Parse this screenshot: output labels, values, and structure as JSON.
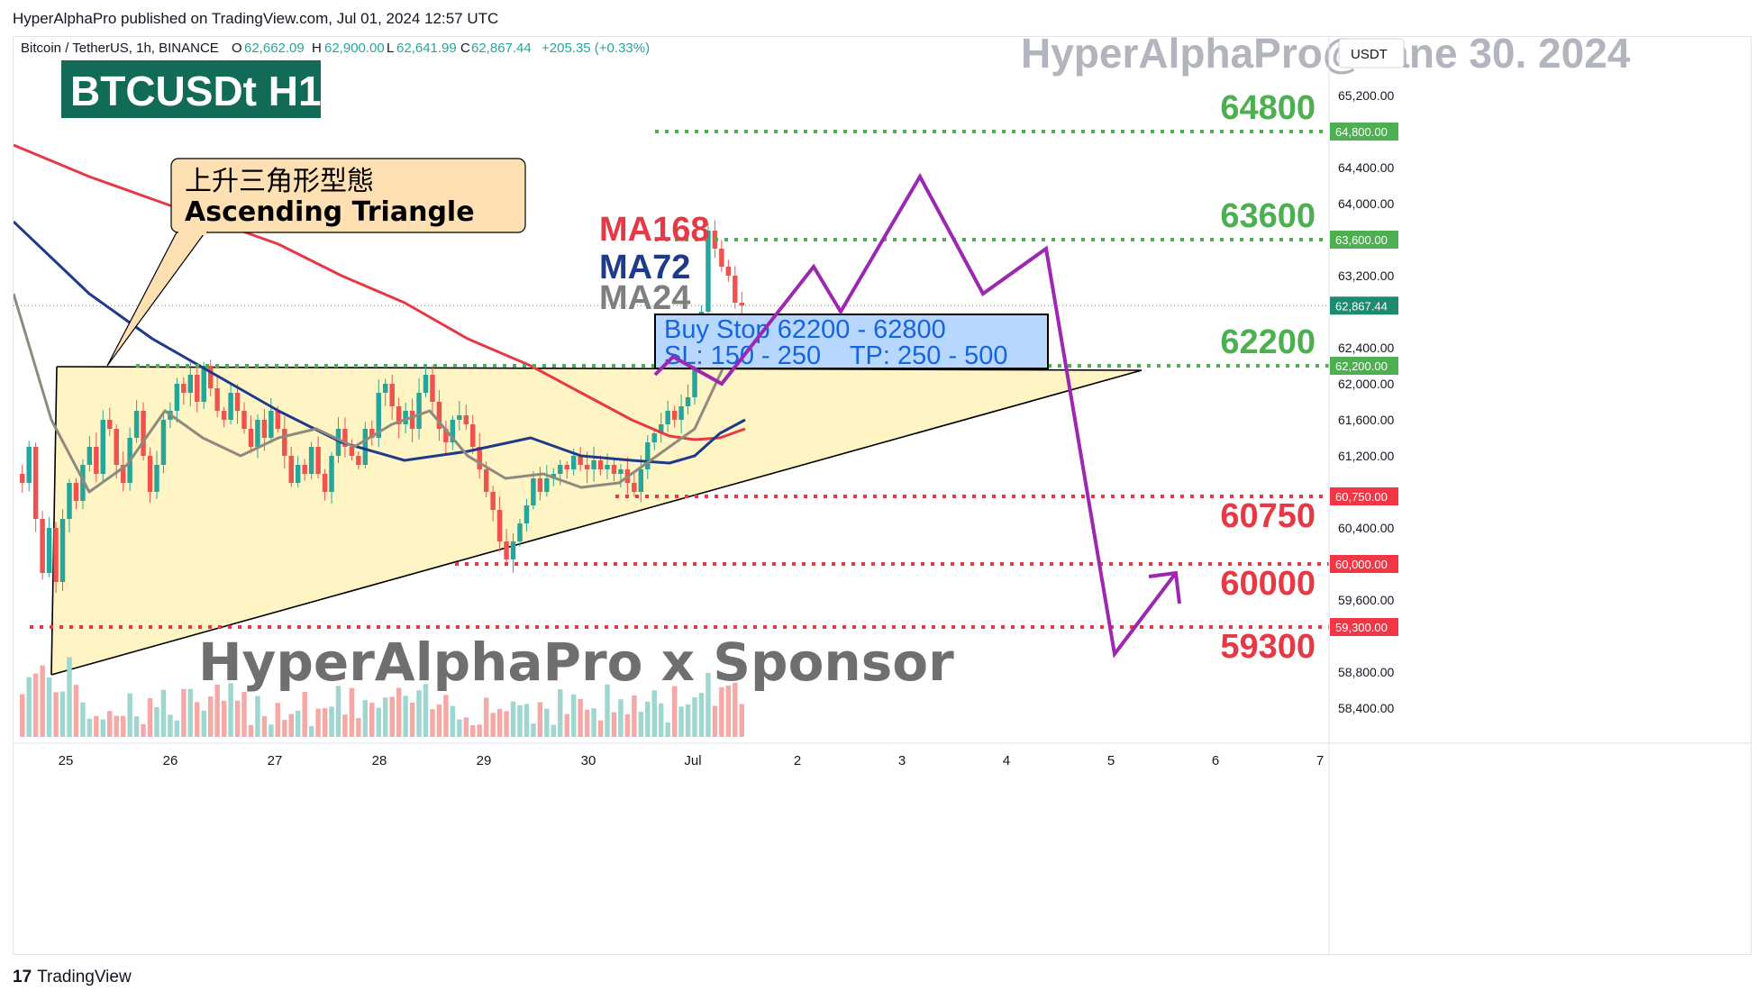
{
  "header": {
    "published": "HyperAlphaPro published on TradingView.com, Jul 01, 2024 12:57 UTC"
  },
  "symbol_bar": {
    "name": "Bitcoin / TetherUS, 1h, BINANCE",
    "open_label": "O",
    "open": "62,662.09",
    "high_label": "H",
    "high": "62,900.00",
    "low_label": "L",
    "low": "62,641.99",
    "close_label": "C",
    "close": "62,867.44",
    "change": "+205.35 (+0.33%)"
  },
  "currency_button": "USDT",
  "watermark_title": "HyperAlphaPro@Jane 30. 2024",
  "badge": "BTCUSDt H1",
  "callout": {
    "line1": "上升三角形型態",
    "line2": "Ascending Triangle"
  },
  "ma_legend": [
    {
      "label": "MA168",
      "color": "#e53946"
    },
    {
      "label": "MA72",
      "color": "#1e3a8a"
    },
    {
      "label": "MA24",
      "color": "#7f7f7f"
    }
  ],
  "trade_box": {
    "line1": "Buy Stop 62200 - 62800",
    "line2": "SL: 150 - 250    TP: 250 - 500"
  },
  "sponsor": "HyperAlphaPro x Sponsor",
  "footer_brand": "TradingView",
  "footer_logo": "17",
  "colors": {
    "up": "#26a69a",
    "down": "#ef5350",
    "green_level": "#4caf50",
    "red_level": "#e53946",
    "path": "#9c27b0"
  },
  "chart_data": {
    "type": "candlestick",
    "ylim": [
      58000,
      65900
    ],
    "x_ticks": [
      "25",
      "26",
      "27",
      "28",
      "29",
      "30",
      "Jul",
      "2",
      "3",
      "4",
      "5",
      "6",
      "7"
    ],
    "y_ticks": [
      "65,200.00",
      "64,400.00",
      "64,000.00",
      "63,200.00",
      "62,400.00",
      "62,000.00",
      "61,600.00",
      "61,200.00",
      "60,400.00",
      "59,600.00",
      "58,800.00",
      "58,400.00"
    ],
    "current_price": {
      "value": 62867.44,
      "label": "62,867.44"
    },
    "levels": [
      {
        "value": 64800,
        "label": "64800",
        "tag": "64,800.00",
        "kind": "green"
      },
      {
        "value": 63600,
        "label": "63600",
        "tag": "63,600.00",
        "kind": "green"
      },
      {
        "value": 62200,
        "label": "62200",
        "tag": "62,200.00",
        "kind": "green"
      },
      {
        "value": 60750,
        "label": "60750",
        "tag": "60,750.00",
        "kind": "red"
      },
      {
        "value": 60000,
        "label": "60000",
        "tag": "60,000.00",
        "kind": "red"
      },
      {
        "value": 59300,
        "label": "59300",
        "tag": "59,300.00",
        "kind": "red"
      }
    ],
    "series_candles": [
      [
        61000,
        60900
      ],
      [
        60900,
        61300
      ],
      [
        61300,
        60500
      ],
      [
        60500,
        59900
      ],
      [
        59900,
        60400
      ],
      [
        60400,
        59800
      ],
      [
        59800,
        60500
      ],
      [
        60500,
        60900
      ],
      [
        60900,
        60700
      ],
      [
        60700,
        61100
      ],
      [
        61100,
        61300
      ],
      [
        61300,
        61000
      ],
      [
        61000,
        61600
      ],
      [
        61600,
        61500
      ],
      [
        61500,
        61100
      ],
      [
        61100,
        60900
      ],
      [
        60900,
        61400
      ],
      [
        61400,
        61700
      ],
      [
        61700,
        61200
      ],
      [
        61200,
        60800
      ],
      [
        60800,
        61100
      ],
      [
        61100,
        61600
      ],
      [
        61600,
        61700
      ],
      [
        61700,
        62000
      ],
      [
        62000,
        61900
      ],
      [
        61900,
        62100
      ],
      [
        62100,
        61800
      ],
      [
        61800,
        62200
      ],
      [
        62200,
        61950
      ],
      [
        61950,
        61700
      ],
      [
        61700,
        61600
      ],
      [
        61600,
        61900
      ],
      [
        61900,
        61700
      ],
      [
        61700,
        61500
      ],
      [
        61500,
        61300
      ],
      [
        61300,
        61600
      ],
      [
        61600,
        61400
      ],
      [
        61400,
        61700
      ],
      [
        61700,
        61500
      ],
      [
        61500,
        61200
      ],
      [
        61200,
        60900
      ],
      [
        60900,
        61100
      ],
      [
        61100,
        61000
      ],
      [
        61000,
        61300
      ],
      [
        61300,
        61000
      ],
      [
        61000,
        60800
      ],
      [
        60800,
        61200
      ],
      [
        61200,
        61500
      ],
      [
        61500,
        61300
      ],
      [
        61300,
        61200
      ],
      [
        61200,
        61100
      ],
      [
        61100,
        61500
      ],
      [
        61500,
        61400
      ],
      [
        61400,
        61900
      ],
      [
        61900,
        62000
      ],
      [
        62000,
        61750
      ],
      [
        61750,
        61550
      ],
      [
        61550,
        61700
      ],
      [
        61700,
        61500
      ],
      [
        61500,
        61900
      ],
      [
        61900,
        62100
      ],
      [
        62100,
        61800
      ],
      [
        61800,
        61500
      ],
      [
        61500,
        61350
      ],
      [
        61350,
        61600
      ],
      [
        61600,
        61650
      ],
      [
        61650,
        61550
      ],
      [
        61550,
        61300
      ],
      [
        61300,
        61050
      ],
      [
        61050,
        60800
      ],
      [
        60800,
        60600
      ],
      [
        60600,
        60250
      ],
      [
        60250,
        60050
      ],
      [
        60050,
        60250
      ],
      [
        60250,
        60450
      ],
      [
        60450,
        60650
      ],
      [
        60650,
        60950
      ],
      [
        60950,
        60800
      ],
      [
        60800,
        60950
      ],
      [
        60950,
        61000
      ],
      [
        61000,
        61100
      ],
      [
        61100,
        61050
      ],
      [
        61050,
        61200
      ],
      [
        61200,
        61100
      ],
      [
        61100,
        61050
      ],
      [
        61050,
        61150
      ],
      [
        61150,
        61050
      ],
      [
        61050,
        61100
      ],
      [
        61100,
        61000
      ],
      [
        61000,
        61050
      ],
      [
        61050,
        60900
      ],
      [
        60900,
        60800
      ],
      [
        60800,
        61050
      ],
      [
        61050,
        61350
      ],
      [
        61350,
        61450
      ],
      [
        61450,
        61550
      ],
      [
        61550,
        61700
      ],
      [
        61700,
        61600
      ],
      [
        61600,
        61750
      ],
      [
        61750,
        61850
      ],
      [
        61850,
        62300
      ],
      [
        62300,
        62800
      ],
      [
        62800,
        63700
      ],
      [
        63700,
        63500
      ],
      [
        63500,
        63300
      ],
      [
        63300,
        63200
      ],
      [
        63200,
        62900
      ],
      [
        62900,
        62867.44
      ]
    ],
    "series_ma168": [
      [
        59200,
        64650
      ],
      [
        59800,
        64300
      ],
      [
        60300,
        64050
      ],
      [
        60800,
        63800
      ],
      [
        61300,
        63550
      ],
      [
        61800,
        63200
      ],
      [
        62300,
        62900
      ],
      [
        62800,
        62500
      ],
      [
        63300,
        62200
      ],
      [
        63700,
        61900
      ],
      [
        64100,
        61600
      ],
      [
        64400,
        61420
      ],
      [
        64600,
        61380
      ],
      [
        64800,
        61400
      ],
      [
        65000,
        61500
      ]
    ],
    "series_ma72": [
      [
        59200,
        63800
      ],
      [
        59800,
        63000
      ],
      [
        60300,
        62500
      ],
      [
        60800,
        62100
      ],
      [
        61300,
        61700
      ],
      [
        61800,
        61350
      ],
      [
        62300,
        61150
      ],
      [
        62800,
        61250
      ],
      [
        63300,
        61400
      ],
      [
        63700,
        61200
      ],
      [
        64100,
        61150
      ],
      [
        64400,
        61120
      ],
      [
        64600,
        61200
      ],
      [
        64800,
        61450
      ],
      [
        65000,
        61600
      ]
    ],
    "series_ma24": [
      [
        59200,
        63000
      ],
      [
        59500,
        61600
      ],
      [
        59800,
        60800
      ],
      [
        60100,
        61100
      ],
      [
        60400,
        61700
      ],
      [
        60700,
        61400
      ],
      [
        61000,
        61200
      ],
      [
        61300,
        61400
      ],
      [
        61600,
        61500
      ],
      [
        61900,
        61300
      ],
      [
        62200,
        61550
      ],
      [
        62500,
        61700
      ],
      [
        62800,
        61200
      ],
      [
        63100,
        60950
      ],
      [
        63400,
        61000
      ],
      [
        63700,
        60850
      ],
      [
        64000,
        60900
      ],
      [
        64300,
        61200
      ],
      [
        64600,
        61500
      ],
      [
        64800,
        62100
      ],
      [
        65000,
        62700
      ]
    ]
  },
  "projection_path": [
    [
      62100
    ],
    [
      62300
    ],
    [
      62000
    ],
    [
      63300
    ],
    [
      62800
    ],
    [
      64300
    ],
    [
      63000
    ],
    [
      63500
    ],
    [
      59000
    ],
    [
      59900
    ]
  ]
}
